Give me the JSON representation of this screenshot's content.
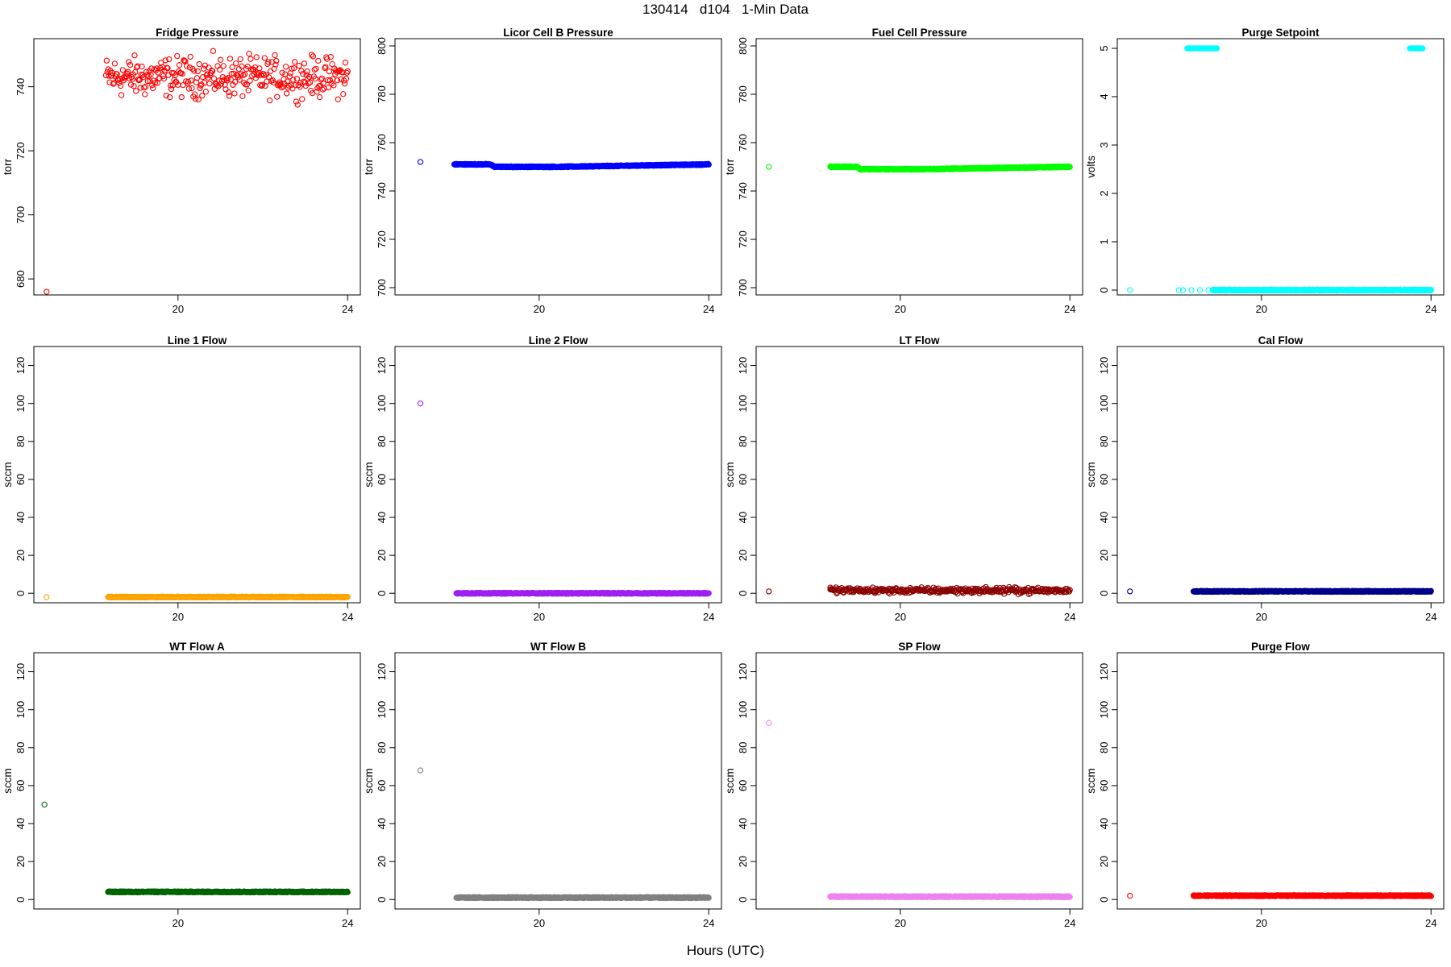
{
  "title": "130414   d104   1-Min Data",
  "xlabel": "Hours (UTC)",
  "chart_data": [
    {
      "type": "scatter",
      "title": "Fridge Pressure",
      "ylabel": "torr",
      "color": "#ff0000",
      "ylim": [
        675,
        755
      ],
      "yticks": [
        680,
        700,
        720,
        740
      ],
      "xticks": [
        20,
        24
      ],
      "xlim": [
        16.6,
        24.3
      ],
      "mode": "noisy",
      "x_start": 18.3,
      "x_end": 24,
      "level": 743,
      "spread": 6.5,
      "outliers": [
        [
          16.9,
          676
        ]
      ],
      "n": 330
    },
    {
      "type": "scatter",
      "title": "Licor Cell B Pressure",
      "ylabel": "torr",
      "color": "#0000ff",
      "ylim": [
        697,
        803
      ],
      "yticks": [
        700,
        720,
        740,
        760,
        780,
        800
      ],
      "xticks": [
        20,
        24
      ],
      "xlim": [
        16.6,
        24.3
      ],
      "mode": "band",
      "x_start": 18.0,
      "x_end": 24,
      "segments": [
        [
          18.0,
          751
        ],
        [
          18.85,
          751
        ],
        [
          18.95,
          750
        ],
        [
          20.5,
          750
        ],
        [
          24,
          751
        ]
      ],
      "outliers": [
        [
          17.2,
          752
        ],
        [
          18.0,
          751
        ]
      ]
    },
    {
      "type": "scatter",
      "title": "Fuel Cell Pressure",
      "ylabel": "torr",
      "color": "#00ff00",
      "ylim": [
        697,
        803
      ],
      "yticks": [
        700,
        720,
        740,
        760,
        780,
        800
      ],
      "xticks": [
        20,
        24
      ],
      "xlim": [
        16.6,
        24.3
      ],
      "mode": "band",
      "x_start": 18.35,
      "x_end": 24,
      "segments": [
        [
          18.35,
          750
        ],
        [
          19.0,
          750
        ],
        [
          19.05,
          749
        ],
        [
          20.5,
          749
        ],
        [
          24,
          750
        ]
      ],
      "outliers": [
        [
          16.9,
          750
        ],
        [
          18.35,
          750
        ]
      ]
    },
    {
      "type": "scatter",
      "title": "Purge Setpoint",
      "ylabel": "volts",
      "color": "#00ffff",
      "ylim": [
        -0.1,
        5.2
      ],
      "yticks": [
        0,
        1,
        2,
        3,
        4,
        5
      ],
      "xticks": [
        20,
        24
      ],
      "xlim": [
        16.6,
        24.3
      ],
      "mode": "purge",
      "x_start": 18.85,
      "x_end": 24,
      "level": 0,
      "highs": [
        [
          18.25,
          18.95,
          5
        ],
        [
          23.5,
          23.8,
          5
        ]
      ],
      "outliers": [
        [
          16.9,
          0
        ],
        [
          18.05,
          0
        ],
        [
          18.15,
          0
        ],
        [
          18.35,
          0
        ],
        [
          18.55,
          0
        ],
        [
          18.75,
          0
        ],
        [
          23.65,
          0
        ],
        [
          23.9,
          0
        ],
        [
          24,
          0
        ]
      ]
    },
    {
      "type": "scatter",
      "title": "Line 1 Flow",
      "ylabel": "sccm",
      "color": "#ffa500",
      "ylim": [
        -5,
        130
      ],
      "yticks": [
        0,
        20,
        40,
        60,
        80,
        100,
        120
      ],
      "xticks": [
        20,
        24
      ],
      "xlim": [
        16.6,
        24.3
      ],
      "mode": "band",
      "x_start": 18.35,
      "x_end": 24,
      "segments": [
        [
          18.35,
          -2
        ],
        [
          24,
          -2
        ]
      ],
      "outliers": [
        [
          16.9,
          -2
        ],
        [
          18.35,
          -2
        ]
      ]
    },
    {
      "type": "scatter",
      "title": "Line 2 Flow",
      "ylabel": "sccm",
      "color": "#a020f0",
      "ylim": [
        -5,
        130
      ],
      "yticks": [
        0,
        20,
        40,
        60,
        80,
        100,
        120
      ],
      "xticks": [
        20,
        24
      ],
      "xlim": [
        16.6,
        24.3
      ],
      "mode": "band",
      "x_start": 18.05,
      "x_end": 24,
      "segments": [
        [
          18.05,
          0
        ],
        [
          24,
          0
        ]
      ],
      "outliers": [
        [
          17.2,
          100
        ],
        [
          18.05,
          0
        ]
      ]
    },
    {
      "type": "scatter",
      "title": "LT Flow",
      "ylabel": "sccm",
      "color": "#8b0000",
      "ylim": [
        -5,
        130
      ],
      "yticks": [
        0,
        20,
        40,
        60,
        80,
        100,
        120
      ],
      "xticks": [
        20,
        24
      ],
      "xlim": [
        16.6,
        24.3
      ],
      "mode": "noisy",
      "x_start": 18.35,
      "x_end": 24,
      "level": 1.5,
      "spread": 1.6,
      "outliers": [
        [
          16.9,
          1
        ],
        [
          18.35,
          3
        ]
      ],
      "n": 340
    },
    {
      "type": "scatter",
      "title": "Cal Flow",
      "ylabel": "sccm",
      "color": "#00008b",
      "ylim": [
        -5,
        130
      ],
      "yticks": [
        0,
        20,
        40,
        60,
        80,
        100,
        120
      ],
      "xticks": [
        20,
        24
      ],
      "xlim": [
        16.6,
        24.3
      ],
      "mode": "band",
      "x_start": 18.4,
      "x_end": 24,
      "segments": [
        [
          18.4,
          1
        ],
        [
          24,
          1
        ]
      ],
      "outliers": [
        [
          16.9,
          1
        ],
        [
          18.4,
          1
        ]
      ]
    },
    {
      "type": "scatter",
      "title": "WT Flow A",
      "ylabel": "sccm",
      "color": "#006400",
      "ylim": [
        -5,
        130
      ],
      "yticks": [
        0,
        20,
        40,
        60,
        80,
        100,
        120
      ],
      "xticks": [
        20,
        24
      ],
      "xlim": [
        16.6,
        24.3
      ],
      "mode": "band",
      "x_start": 18.35,
      "x_end": 24,
      "segments": [
        [
          18.35,
          4
        ],
        [
          24,
          4
        ]
      ],
      "outliers": [
        [
          16.85,
          50
        ],
        [
          18.35,
          4
        ]
      ]
    },
    {
      "type": "scatter",
      "title": "WT Flow B",
      "ylabel": "sccm",
      "color": "#808080",
      "ylim": [
        -5,
        130
      ],
      "yticks": [
        0,
        20,
        40,
        60,
        80,
        100,
        120
      ],
      "xticks": [
        20,
        24
      ],
      "xlim": [
        16.6,
        24.3
      ],
      "mode": "band",
      "x_start": 18.05,
      "x_end": 24,
      "segments": [
        [
          18.05,
          1
        ],
        [
          24,
          1
        ]
      ],
      "outliers": [
        [
          17.2,
          68
        ],
        [
          18.05,
          1
        ]
      ]
    },
    {
      "type": "scatter",
      "title": "SP Flow",
      "ylabel": "sccm",
      "color": "#ee82ee",
      "ylim": [
        -5,
        130
      ],
      "yticks": [
        0,
        20,
        40,
        60,
        80,
        100,
        120
      ],
      "xticks": [
        20,
        24
      ],
      "xlim": [
        16.6,
        24.3
      ],
      "mode": "band",
      "x_start": 18.35,
      "x_end": 24,
      "segments": [
        [
          18.35,
          1.5
        ],
        [
          24,
          1.5
        ]
      ],
      "outliers": [
        [
          16.9,
          93
        ],
        [
          18.35,
          1.5
        ]
      ]
    },
    {
      "type": "scatter",
      "title": "Purge Flow",
      "ylabel": "sccm",
      "color": "#ff0000",
      "ylim": [
        -5,
        130
      ],
      "yticks": [
        0,
        20,
        40,
        60,
        80,
        100,
        120
      ],
      "xticks": [
        20,
        24
      ],
      "xlim": [
        16.6,
        24.3
      ],
      "mode": "band",
      "x_start": 18.4,
      "x_end": 24,
      "segments": [
        [
          18.4,
          2
        ],
        [
          24,
          2
        ]
      ],
      "outliers": [
        [
          16.9,
          2
        ],
        [
          18.4,
          2
        ]
      ]
    }
  ]
}
